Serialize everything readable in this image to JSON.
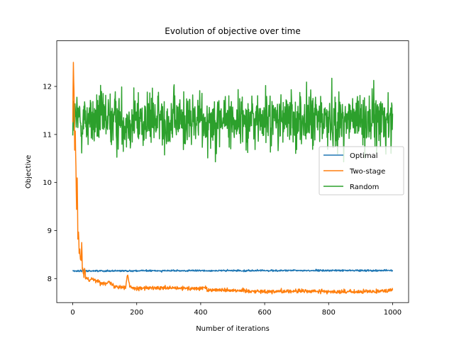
{
  "chart_data": {
    "type": "line",
    "title": "Evolution of objective over time",
    "xlabel": "Number of iterations",
    "ylabel": "Objective",
    "xlim": [
      -50,
      1050
    ],
    "ylim": [
      7.5,
      12.95
    ],
    "xticks": [
      0,
      200,
      400,
      600,
      800,
      1000
    ],
    "yticks": [
      8,
      9,
      10,
      11,
      12
    ],
    "grid": false,
    "legend_position": "center-right",
    "n_points": 1001,
    "series": [
      {
        "name": "Optimal",
        "color": "#1f77b4",
        "points": [
          [
            0,
            8.16
          ],
          [
            1000,
            8.17
          ]
        ],
        "mean": 8.17,
        "noise": 0.012
      },
      {
        "name": "Two-stage",
        "color": "#ff7f0e",
        "points": [
          [
            0,
            11.3
          ],
          [
            2,
            12.5
          ],
          [
            4,
            11.9
          ],
          [
            6,
            10.7
          ],
          [
            8,
            11.1
          ],
          [
            10,
            10.2
          ],
          [
            12,
            9.4
          ],
          [
            14,
            10.1
          ],
          [
            16,
            8.85
          ],
          [
            18,
            9.0
          ],
          [
            20,
            8.45
          ],
          [
            22,
            8.55
          ],
          [
            25,
            8.35
          ],
          [
            28,
            8.75
          ],
          [
            30,
            8.15
          ],
          [
            35,
            8.05
          ],
          [
            38,
            8.25
          ],
          [
            40,
            8.02
          ],
          [
            50,
            7.98
          ],
          [
            60,
            8.0
          ],
          [
            75,
            7.95
          ],
          [
            90,
            7.9
          ],
          [
            110,
            7.93
          ],
          [
            130,
            7.85
          ],
          [
            150,
            7.83
          ],
          [
            165,
            7.82
          ],
          [
            172,
            8.08
          ],
          [
            178,
            7.83
          ],
          [
            200,
            7.8
          ],
          [
            300,
            7.8
          ],
          [
            400,
            7.79
          ],
          [
            415,
            7.82
          ],
          [
            420,
            7.77
          ],
          [
            500,
            7.76
          ],
          [
            560,
            7.74
          ],
          [
            600,
            7.73
          ],
          [
            700,
            7.74
          ],
          [
            800,
            7.73
          ],
          [
            900,
            7.72
          ],
          [
            1000,
            7.76
          ]
        ],
        "noise": 0.03
      },
      {
        "name": "Random",
        "color": "#2ca02c",
        "points": [
          [
            0,
            11.3
          ],
          [
            1000,
            11.3
          ]
        ],
        "mean": 11.3,
        "noise": 0.42,
        "min": 10.43,
        "max": 12.75
      }
    ]
  }
}
